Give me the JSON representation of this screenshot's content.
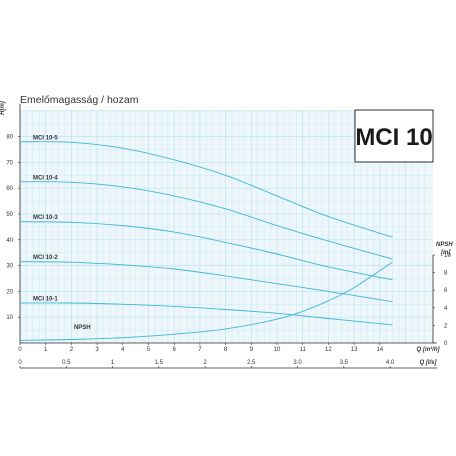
{
  "chart_data": {
    "type": "line",
    "title": "Emelőmagasság / hozam",
    "badge": "MCI 10",
    "ylabel_left": "H[m]",
    "ylabel_right": [
      "NPSH",
      "[m]"
    ],
    "xlabel_top": "Q [m³/h]",
    "xlabel_bottom": "Q [l/s]",
    "xlim_m3h": [
      0,
      15
    ],
    "ylim_left": [
      0,
      90
    ],
    "ylim_right": [
      0,
      14
    ],
    "x_ticks_m3h": [
      "0",
      "1",
      "2",
      "3",
      "4",
      "5",
      "6",
      "7",
      "8",
      "9",
      "10",
      "11",
      "12",
      "13",
      "14"
    ],
    "x_ticks_ls": [
      {
        "value": 0,
        "label": "0"
      },
      {
        "value": 0.5,
        "label": "0.5"
      },
      {
        "value": 1,
        "label": "1"
      },
      {
        "value": 1.5,
        "label": "1.5"
      },
      {
        "value": 2,
        "label": "2"
      },
      {
        "value": 2.5,
        "label": "2.5"
      },
      {
        "value": 3,
        "label": "3.0"
      },
      {
        "value": 3.5,
        "label": "3.5"
      },
      {
        "value": 4,
        "label": "4.0"
      }
    ],
    "y_ticks_left": [
      "10",
      "20",
      "30",
      "40",
      "50",
      "60",
      "70",
      "80"
    ],
    "y_ticks_right": [
      "0",
      "2",
      "4",
      "6",
      "8",
      "10"
    ],
    "grid": true,
    "colors": {
      "curve": "#3fb6d8",
      "grid": "#bfe3ef",
      "plot_bg": "#edf7fb",
      "axis": "#2b2b2b",
      "badge_border": "#333333"
    },
    "series": [
      {
        "name": "MCI 10-5",
        "axis": "left",
        "x": [
          0,
          2,
          4,
          6,
          8,
          10,
          12,
          14.5
        ],
        "y": [
          78,
          77.8,
          75.5,
          71,
          65,
          57,
          49,
          41
        ]
      },
      {
        "name": "MCI 10-4",
        "axis": "left",
        "x": [
          0,
          2,
          4,
          6,
          8,
          10,
          12,
          14.5
        ],
        "y": [
          62.5,
          62.3,
          60.5,
          57,
          52,
          45.5,
          39.5,
          32.5
        ]
      },
      {
        "name": "MCI 10-3",
        "axis": "left",
        "x": [
          0,
          2,
          4,
          6,
          8,
          10,
          12,
          14.5
        ],
        "y": [
          47,
          46.8,
          45.5,
          43,
          39,
          34.5,
          29.5,
          24.5
        ]
      },
      {
        "name": "MCI 10-2",
        "axis": "left",
        "x": [
          0,
          2,
          4,
          6,
          8,
          10,
          12,
          14.5
        ],
        "y": [
          31.5,
          31.3,
          30.3,
          28.7,
          26,
          23,
          20,
          16
        ]
      },
      {
        "name": "MCI 10-1",
        "axis": "left",
        "x": [
          0,
          2,
          4,
          6,
          8,
          10,
          12,
          14.5
        ],
        "y": [
          15.5,
          15.5,
          15,
          14.2,
          13,
          11.5,
          9.5,
          7
        ]
      },
      {
        "name": "NPSH",
        "axis": "right",
        "x": [
          0,
          2,
          4,
          6,
          8,
          10,
          11,
          12,
          13,
          14.5
        ],
        "y": [
          0.3,
          0.4,
          0.6,
          1.0,
          1.6,
          2.7,
          3.6,
          4.8,
          6.3,
          9.2
        ]
      }
    ]
  }
}
